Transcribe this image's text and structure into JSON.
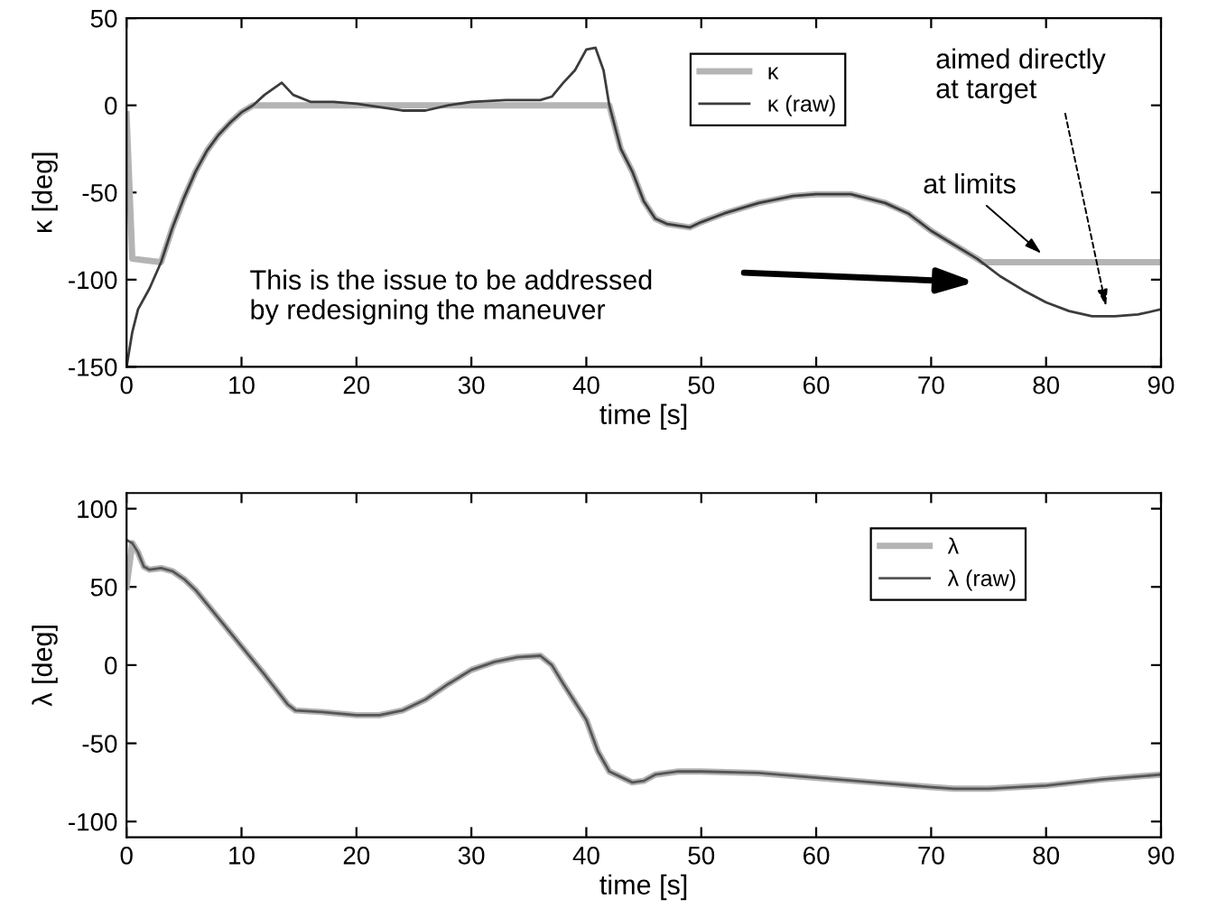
{
  "chart_data": [
    {
      "type": "line",
      "xlabel": "time [s]",
      "ylabel": "κ [deg]",
      "xlim": [
        0,
        90
      ],
      "ylim": [
        -150,
        50
      ],
      "xticks": [
        0,
        10,
        20,
        30,
        40,
        50,
        60,
        70,
        80,
        90
      ],
      "yticks": [
        -150,
        -100,
        -50,
        0,
        50
      ],
      "grid": false,
      "legend": "top",
      "marker": "none",
      "line_style": "solid",
      "series": [
        {
          "name": "κ",
          "color": "#b4b4b4",
          "x": [
            0,
            0.5,
            3,
            4,
            5,
            6,
            7,
            8,
            9,
            10,
            11,
            42,
            43,
            44,
            45,
            46,
            47,
            49,
            50,
            52,
            55,
            58,
            60,
            63,
            66,
            68,
            70,
            72,
            74.5,
            90
          ],
          "values": [
            -5,
            -88,
            -90,
            -70,
            -53,
            -38,
            -26,
            -17,
            -10,
            -4,
            0,
            0,
            -25,
            -38,
            -55,
            -65,
            -68,
            -70,
            -67,
            -62,
            -56,
            -52,
            -51,
            -51,
            -56,
            -62,
            -72,
            -80,
            -90,
            -90
          ]
        },
        {
          "name": "κ (raw)",
          "color": "#3c3c3c",
          "x": [
            0,
            0.5,
            1,
            2,
            3,
            4,
            5,
            6,
            7,
            8,
            9,
            10,
            11,
            12,
            13.5,
            14.5,
            16,
            18,
            20,
            22,
            24,
            26,
            28,
            30,
            33,
            36,
            37,
            38,
            39,
            40,
            40.8,
            41.5,
            42,
            43,
            44,
            45,
            46,
            47,
            49,
            50,
            52,
            55,
            58,
            60,
            63,
            66,
            68,
            70,
            72,
            74,
            76,
            78,
            80,
            82,
            84,
            86,
            88,
            90
          ],
          "values": [
            -150,
            -130,
            -117,
            -105,
            -90,
            -70,
            -53,
            -38,
            -26,
            -17,
            -10,
            -4,
            0,
            6,
            13,
            6,
            2,
            2,
            1,
            -1,
            -3,
            -3,
            0,
            2,
            3,
            3,
            5,
            13,
            20,
            32,
            33,
            20,
            0,
            -25,
            -38,
            -55,
            -65,
            -68,
            -70,
            -67,
            -62,
            -56,
            -52,
            -51,
            -51,
            -56,
            -62,
            -72,
            -80,
            -88,
            -98,
            -106,
            -113,
            -118,
            -121,
            -121,
            -120,
            -117
          ]
        }
      ],
      "annotations": [
        "This is the issue to be addressed\nby redesigning the maneuver",
        {
          "text": "at limits",
          "x": 79.6,
          "y": -85
        },
        {
          "text": "aimed directly\nat target",
          "x": 85.4,
          "y": -121
        }
      ]
    },
    {
      "type": "line",
      "xlabel": "time [s]",
      "ylabel": "λ [deg]",
      "xlim": [
        0,
        90
      ],
      "ylim": [
        -110,
        110
      ],
      "xticks": [
        0,
        10,
        20,
        30,
        40,
        50,
        60,
        70,
        80,
        90
      ],
      "yticks": [
        -100,
        -50,
        0,
        50,
        100
      ],
      "grid": false,
      "legend": "top right",
      "marker": "none",
      "line_style": "solid",
      "series": [
        {
          "name": "λ",
          "color": "#b4b4b4",
          "x": [
            0,
            0.5,
            1,
            1.5,
            2,
            3,
            4,
            5,
            6,
            8,
            10,
            12,
            14,
            14.7,
            17,
            20,
            22,
            24,
            26,
            28,
            30,
            32,
            34,
            36,
            37,
            38,
            40,
            41,
            42,
            44,
            45,
            46,
            48,
            50,
            55,
            60,
            65,
            70,
            72,
            75,
            80,
            85,
            90
          ],
          "values": [
            50,
            78,
            72,
            63,
            61,
            62,
            60,
            55,
            48,
            30,
            12,
            -6,
            -25,
            -29,
            -30,
            -32,
            -32,
            -29,
            -22,
            -12,
            -3,
            2,
            5,
            6,
            0,
            -12,
            -35,
            -55,
            -68,
            -75,
            -74,
            -70,
            -68,
            -68,
            -69,
            -72,
            -75,
            -78,
            -79,
            -79,
            -77,
            -73,
            -70
          ]
        },
        {
          "name": "λ (raw)",
          "color": "#555555",
          "x": [
            0,
            0.5,
            1,
            1.5,
            2,
            3,
            4,
            5,
            6,
            8,
            10,
            12,
            14,
            14.7,
            17,
            20,
            22,
            24,
            26,
            28,
            30,
            32,
            34,
            36,
            37,
            38,
            40,
            41,
            42,
            44,
            45,
            46,
            48,
            50,
            55,
            60,
            65,
            70,
            72,
            75,
            80,
            85,
            90
          ],
          "values": [
            80,
            78,
            72,
            63,
            61,
            62,
            60,
            55,
            48,
            30,
            12,
            -6,
            -25,
            -29,
            -30,
            -32,
            -32,
            -29,
            -22,
            -12,
            -3,
            2,
            5,
            6,
            0,
            -12,
            -35,
            -55,
            -68,
            -75,
            -74,
            -70,
            -68,
            -68,
            -69,
            -72,
            -75,
            -78,
            -79,
            -79,
            -77,
            -73,
            -70
          ]
        }
      ]
    }
  ]
}
